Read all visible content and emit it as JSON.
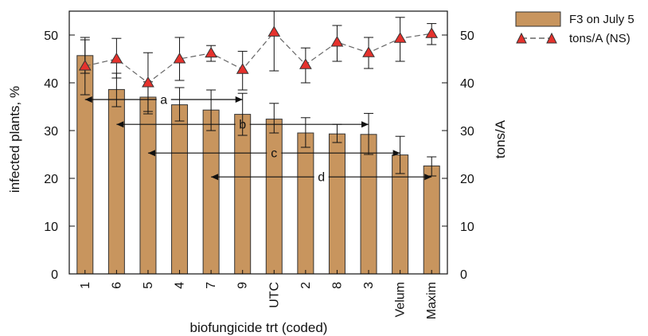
{
  "chart_data": {
    "type": "bar",
    "xlabel": "biofungicide trt (coded)",
    "ylabel_left": "infected plants, %",
    "ylabel_right": "tons/A",
    "ylim_left": [
      0,
      55
    ],
    "ylim_right": [
      0,
      55
    ],
    "yticks": [
      "0",
      "10",
      "20",
      "30",
      "40",
      "50"
    ],
    "grid": false,
    "legend_position": "top-right, outside plot",
    "categories": [
      "1",
      "6",
      "5",
      "4",
      "7",
      "9",
      "UTC",
      "2",
      "8",
      "3",
      "Velum",
      "Maxim"
    ],
    "series": [
      {
        "name": "F3 on July 5",
        "kind": "bar",
        "axis": "left",
        "color": "#C8955E",
        "values": [
          45.7,
          38.6,
          37.0,
          35.4,
          34.3,
          33.4,
          32.4,
          29.5,
          29.3,
          29.2,
          24.9,
          22.6
        ],
        "error_high": [
          49.5,
          42.0,
          40.2,
          39.0,
          38.5,
          37.8,
          35.7,
          32.7,
          31.3,
          33.6,
          28.8,
          24.5
        ],
        "error_low": [
          42.0,
          35.0,
          34.0,
          32.0,
          30.0,
          29.0,
          29.5,
          26.5,
          27.5,
          25.0,
          21.0,
          20.5
        ]
      },
      {
        "name": "tons/A (NS)",
        "kind": "line",
        "axis": "right",
        "marker": "triangle",
        "marker_color": "#E5322D",
        "values": [
          43.5,
          45.0,
          40.0,
          45.0,
          46.2,
          42.8,
          50.6,
          43.8,
          48.5,
          46.3,
          49.3,
          50.3
        ],
        "error_high": [
          49.0,
          49.3,
          46.3,
          49.5,
          47.8,
          46.6,
          55.0,
          47.3,
          52.0,
          49.5,
          53.7,
          52.4
        ],
        "error_low": [
          37.5,
          41.0,
          33.5,
          40.5,
          44.5,
          38.5,
          42.5,
          40.0,
          44.5,
          43.0,
          44.5,
          48.0
        ]
      }
    ],
    "annotations": [
      {
        "label": "a",
        "from_category": "1",
        "to_category": "9",
        "y": 36.5
      },
      {
        "label": "b",
        "from_category": "6",
        "to_category": "3",
        "y": 31.3
      },
      {
        "label": "c",
        "from_category": "5",
        "to_category": "Velum",
        "y": 25.3
      },
      {
        "label": "d",
        "from_category": "7",
        "to_category": "Maxim",
        "y": 20.3
      }
    ]
  }
}
